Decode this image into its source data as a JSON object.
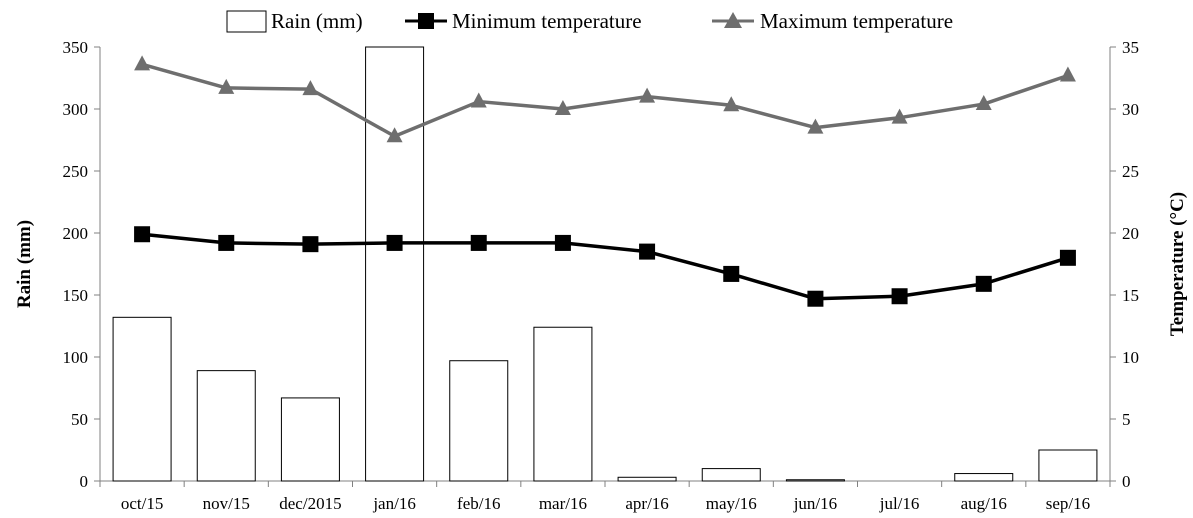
{
  "chart_data": {
    "type": "bar",
    "title": "",
    "categories": [
      "oct/15",
      "nov/15",
      "dec/2015",
      "jan/16",
      "feb/16",
      "mar/16",
      "apr/16",
      "may/16",
      "jun/16",
      "jul/16",
      "aug/16",
      "sep/16"
    ],
    "series": [
      {
        "name": "Rain (mm)",
        "type": "bar",
        "axis": "left",
        "values": [
          132,
          89,
          67,
          350,
          97,
          124,
          3,
          10,
          1,
          0,
          6,
          25
        ]
      },
      {
        "name": "Minimum temperature",
        "type": "line",
        "axis": "right",
        "marker": "square",
        "values": [
          19.9,
          19.2,
          19.1,
          19.2,
          19.2,
          19.2,
          18.5,
          16.7,
          14.7,
          14.9,
          15.9,
          18.0
        ]
      },
      {
        "name": "Maximum temperature",
        "type": "line",
        "axis": "right",
        "marker": "triangle",
        "values": [
          33.6,
          31.7,
          31.6,
          27.8,
          30.6,
          30.0,
          31.0,
          30.3,
          28.5,
          29.3,
          30.4,
          32.7
        ]
      }
    ],
    "ylabel": "Rain (mm)",
    "y2label": "Temperature (°C)",
    "ylim": [
      0,
      350
    ],
    "y2lim": [
      0,
      35
    ],
    "yticks": [
      "0",
      "50",
      "100",
      "150",
      "200",
      "250",
      "300",
      "350"
    ],
    "y2ticks": [
      "0",
      "5",
      "10",
      "15",
      "20",
      "25",
      "30",
      "35"
    ],
    "grid": false,
    "legend_position": "top",
    "colors": {
      "bar_fill": "#ffffff",
      "bar_stroke": "#000000",
      "min_line": "#000000",
      "max_line": "#6e6e6e",
      "axis": "#808080"
    }
  }
}
